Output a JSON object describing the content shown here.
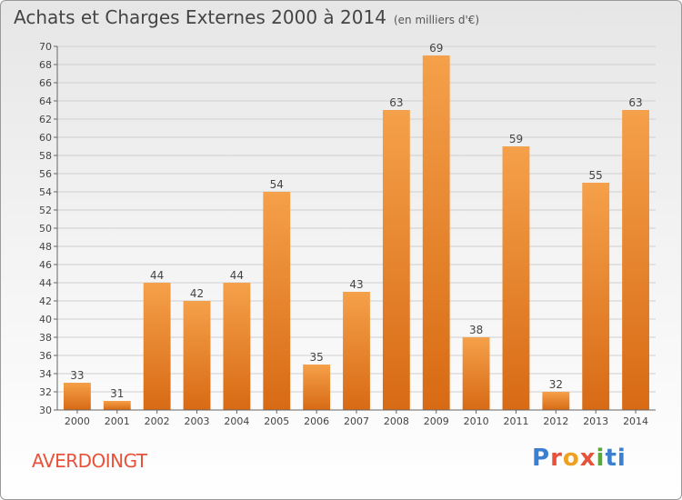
{
  "title": "Achats et Charges Externes 2000 à 2014",
  "title_unit": "(en milliers d'€)",
  "commune": "AVERDOINGT",
  "logo_letters": [
    "P",
    "r",
    "o",
    "x",
    "i",
    "ti"
  ],
  "colors": {
    "bar_top": "#f5a04a",
    "bar_bottom": "#d86a14",
    "text": "#444444",
    "commune": "#e8523a"
  },
  "chart_data": {
    "type": "bar",
    "categories": [
      "2000",
      "2001",
      "2002",
      "2003",
      "2004",
      "2005",
      "2006",
      "2007",
      "2008",
      "2009",
      "2010",
      "2011",
      "2012",
      "2013",
      "2014"
    ],
    "values": [
      33,
      31,
      44,
      42,
      44,
      54,
      35,
      43,
      63,
      69,
      38,
      59,
      32,
      55,
      63
    ],
    "ylim": [
      30,
      70
    ],
    "yticks": [
      30,
      32,
      34,
      36,
      38,
      40,
      42,
      44,
      46,
      48,
      50,
      52,
      54,
      56,
      58,
      60,
      62,
      64,
      66,
      68,
      70
    ],
    "xlabel": "",
    "ylabel": "",
    "grid": true,
    "data_labels": true
  }
}
